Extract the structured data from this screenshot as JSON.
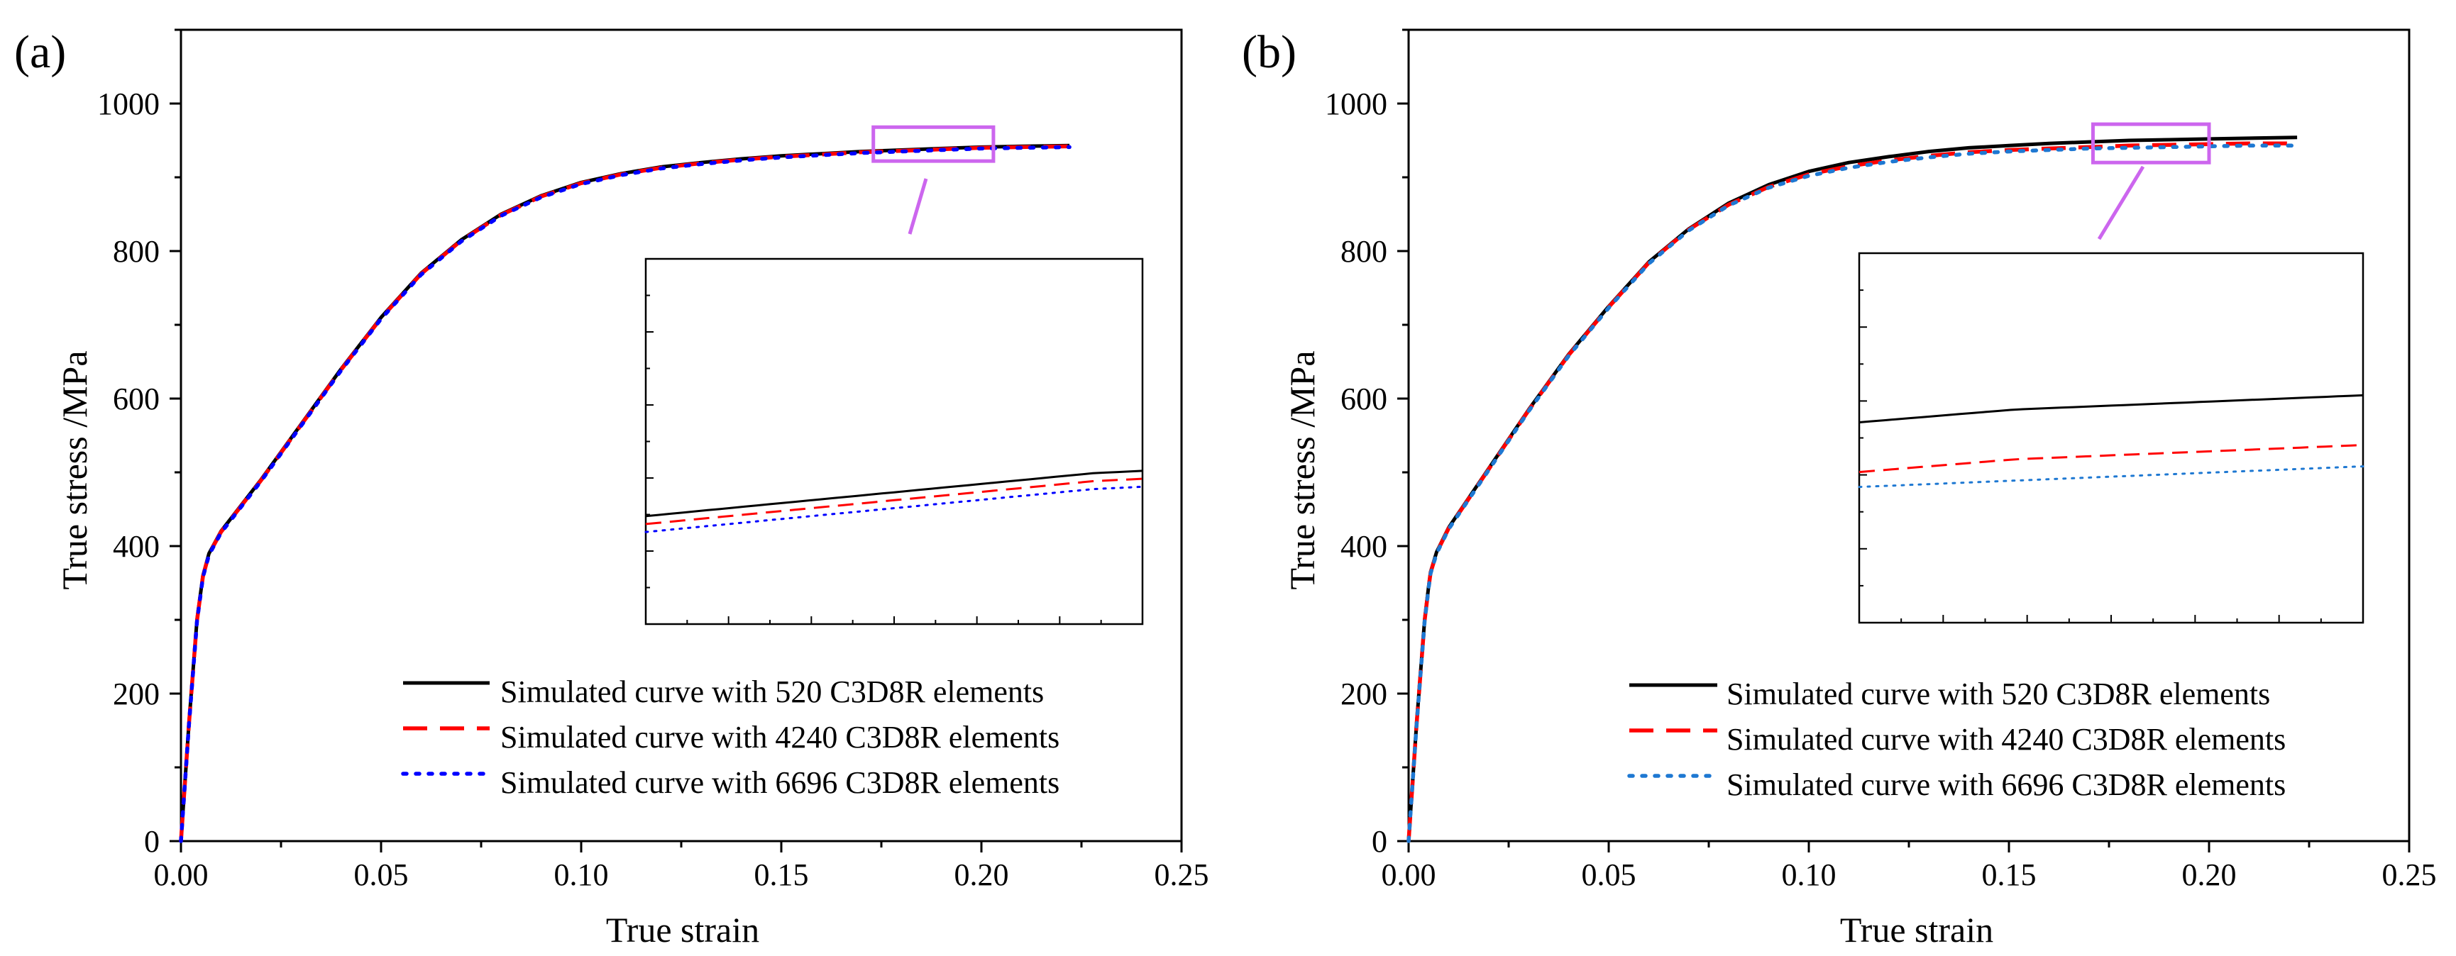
{
  "figure": {
    "panels": [
      {
        "label": "(a)",
        "xlabel": "True strain",
        "ylabel": "True stress /MPa",
        "xticks": [
          "0.00",
          "0.05",
          "0.10",
          "0.15",
          "0.20",
          "0.25"
        ],
        "yticks": [
          "0",
          "200",
          "400",
          "600",
          "800",
          "1000"
        ],
        "legend": [
          "Simulated curve with 520  C3D8R elements",
          "Simulated curve with 4240 C3D8R elements",
          "Simulated curve with 6696 C3D8R elements"
        ]
      },
      {
        "label": "(b)",
        "xlabel": "True strain",
        "ylabel": "True stress /MPa",
        "xticks": [
          "0.00",
          "0.05",
          "0.10",
          "0.15",
          "0.20",
          "0.25"
        ],
        "yticks": [
          "0",
          "200",
          "400",
          "600",
          "800",
          "1000"
        ],
        "legend": [
          "Simulated curve with 520  C3D8R elements",
          "Simulated curve with 4240 C3D8R elements",
          "Simulated curve with 6696 C3D8R elements"
        ]
      }
    ]
  },
  "colors": {
    "series_520": "#000000",
    "series_4240": "#ff0000",
    "series_6696_a": "#0000ff",
    "series_6696_b": "#1e78d2",
    "zoom_box": "#cc66ee"
  },
  "chart_data": [
    {
      "type": "line",
      "title": "(a)",
      "xlabel": "True strain",
      "ylabel": "True stress /MPa",
      "xlim": [
        0,
        0.25
      ],
      "ylim": [
        0,
        1100
      ],
      "zoom_region": {
        "xlim": [
          0.173,
          0.203
        ],
        "ylim": [
          922,
          968
        ]
      },
      "series": [
        {
          "name": "Simulated curve with 520  C3D8R elements",
          "style": "solid",
          "x": [
            0,
            0.002,
            0.004,
            0.005,
            0.0055,
            0.007,
            0.01,
            0.015,
            0.02,
            0.03,
            0.04,
            0.05,
            0.06,
            0.07,
            0.08,
            0.09,
            0.1,
            0.11,
            0.12,
            0.13,
            0.14,
            0.15,
            0.16,
            0.17,
            0.18,
            0.19,
            0.2,
            0.21,
            0.222
          ],
          "y": [
            0,
            160,
            300,
            340,
            360,
            390,
            420,
            455,
            490,
            565,
            640,
            710,
            770,
            815,
            850,
            875,
            893,
            905,
            914,
            920,
            925,
            929,
            932,
            935,
            937,
            939,
            941,
            942,
            943
          ]
        },
        {
          "name": "Simulated curve with 4240 C3D8R elements",
          "style": "dashed",
          "x": [
            0,
            0.002,
            0.004,
            0.005,
            0.0055,
            0.007,
            0.01,
            0.015,
            0.02,
            0.03,
            0.04,
            0.05,
            0.06,
            0.07,
            0.08,
            0.09,
            0.1,
            0.11,
            0.12,
            0.13,
            0.14,
            0.15,
            0.16,
            0.17,
            0.18,
            0.19,
            0.2,
            0.21,
            0.222
          ],
          "y": [
            0,
            159,
            299,
            339,
            359,
            389,
            419,
            454,
            489,
            564,
            639,
            709,
            769,
            814,
            849,
            874,
            892,
            904,
            913,
            919,
            924,
            928,
            931,
            934,
            936,
            938,
            940,
            941,
            942
          ]
        },
        {
          "name": "Simulated curve with 6696 C3D8R elements",
          "style": "dotted",
          "x": [
            0,
            0.002,
            0.004,
            0.005,
            0.0055,
            0.007,
            0.01,
            0.015,
            0.02,
            0.03,
            0.04,
            0.05,
            0.06,
            0.07,
            0.08,
            0.09,
            0.1,
            0.11,
            0.12,
            0.13,
            0.14,
            0.15,
            0.16,
            0.17,
            0.18,
            0.19,
            0.2,
            0.21,
            0.222
          ],
          "y": [
            0,
            158,
            298,
            338,
            358,
            388,
            418,
            453,
            488,
            563,
            638,
            708,
            768,
            813,
            848,
            873,
            891,
            903,
            912,
            918,
            923,
            927,
            930,
            933,
            935,
            937,
            939,
            940,
            941
          ]
        }
      ]
    },
    {
      "type": "line",
      "title": "(b)",
      "xlabel": "True strain",
      "ylabel": "True stress /MPa",
      "xlim": [
        0,
        0.25
      ],
      "ylim": [
        0,
        1100
      ],
      "zoom_region": {
        "xlim": [
          0.171,
          0.2
        ],
        "ylim": [
          920,
          972
        ]
      },
      "series": [
        {
          "name": "Simulated curve with 520  C3D8R elements",
          "style": "solid",
          "x": [
            0,
            0.002,
            0.004,
            0.005,
            0.0055,
            0.007,
            0.01,
            0.015,
            0.02,
            0.03,
            0.04,
            0.05,
            0.06,
            0.07,
            0.08,
            0.09,
            0.1,
            0.11,
            0.12,
            0.13,
            0.14,
            0.15,
            0.16,
            0.17,
            0.18,
            0.19,
            0.2,
            0.21,
            0.222
          ],
          "y": [
            0,
            160,
            300,
            345,
            365,
            392,
            425,
            465,
            505,
            585,
            660,
            725,
            785,
            830,
            865,
            890,
            908,
            920,
            928,
            935,
            940,
            943,
            946,
            948,
            950,
            951,
            952,
            953,
            954
          ]
        },
        {
          "name": "Simulated curve with 4240 C3D8R elements",
          "style": "dashed",
          "x": [
            0,
            0.002,
            0.004,
            0.005,
            0.0055,
            0.007,
            0.01,
            0.015,
            0.02,
            0.03,
            0.04,
            0.05,
            0.06,
            0.07,
            0.08,
            0.09,
            0.1,
            0.11,
            0.12,
            0.13,
            0.14,
            0.15,
            0.16,
            0.17,
            0.18,
            0.19,
            0.2,
            0.21,
            0.222
          ],
          "y": [
            0,
            159,
            299,
            344,
            364,
            391,
            424,
            464,
            504,
            584,
            659,
            724,
            784,
            829,
            863,
            887,
            904,
            915,
            923,
            929,
            934,
            937,
            939,
            941,
            943,
            944,
            945,
            946,
            946
          ]
        },
        {
          "name": "Simulated curve with 6696 C3D8R elements",
          "style": "dotted",
          "x": [
            0,
            0.002,
            0.004,
            0.005,
            0.0055,
            0.007,
            0.01,
            0.015,
            0.02,
            0.03,
            0.04,
            0.05,
            0.06,
            0.07,
            0.08,
            0.09,
            0.1,
            0.11,
            0.12,
            0.13,
            0.14,
            0.15,
            0.16,
            0.17,
            0.18,
            0.19,
            0.2,
            0.21,
            0.222
          ],
          "y": [
            0,
            158,
            298,
            343,
            363,
            390,
            423,
            463,
            503,
            583,
            658,
            723,
            783,
            828,
            862,
            886,
            902,
            913,
            921,
            927,
            932,
            935,
            937,
            939,
            940,
            941,
            942,
            943,
            943
          ]
        }
      ]
    }
  ]
}
